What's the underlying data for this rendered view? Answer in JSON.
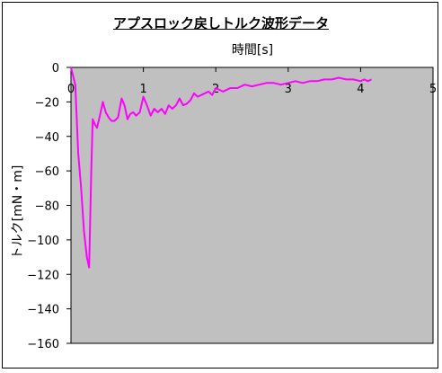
{
  "chart_data": {
    "type": "line",
    "title": "アプスロック戻しトルク波形データ",
    "xlabel": "時間[s]",
    "ylabel": "トルク[mN・m]",
    "xlim": [
      0,
      5
    ],
    "ylim": [
      -160,
      0
    ],
    "x_ticks": [
      "0",
      "1",
      "2",
      "3",
      "4",
      "5"
    ],
    "y_ticks": [
      "0",
      "−20",
      "−40",
      "−60",
      "−80",
      "−100",
      "−120",
      "−140",
      "−160"
    ],
    "plot_background": "#c0c0c0",
    "grid": false,
    "series": [
      {
        "color": "#ff00ff",
        "x": [
          0.0,
          0.06,
          0.1,
          0.14,
          0.18,
          0.22,
          0.25,
          0.28,
          0.3,
          0.33,
          0.36,
          0.4,
          0.44,
          0.48,
          0.52,
          0.56,
          0.6,
          0.65,
          0.7,
          0.74,
          0.78,
          0.82,
          0.86,
          0.9,
          0.95,
          1.0,
          1.05,
          1.1,
          1.15,
          1.2,
          1.25,
          1.3,
          1.35,
          1.4,
          1.45,
          1.5,
          1.55,
          1.6,
          1.65,
          1.7,
          1.75,
          1.8,
          1.85,
          1.9,
          1.95,
          2.0,
          2.1,
          2.2,
          2.3,
          2.4,
          2.5,
          2.6,
          2.7,
          2.8,
          2.9,
          3.0,
          3.1,
          3.2,
          3.3,
          3.4,
          3.5,
          3.6,
          3.7,
          3.8,
          3.9,
          4.0,
          4.05,
          4.1,
          4.15
        ],
        "y": [
          0,
          -10,
          -50,
          -70,
          -95,
          -110,
          -116,
          -60,
          -30,
          -33,
          -35,
          -28,
          -20,
          -26,
          -29,
          -31,
          -31,
          -29,
          -18,
          -22,
          -30,
          -27,
          -26,
          -28,
          -26,
          -17,
          -22,
          -28,
          -24,
          -26,
          -24,
          -27,
          -22,
          -24,
          -22,
          -18,
          -22,
          -21,
          -19,
          -15,
          -17,
          -16,
          -15,
          -14,
          -16,
          -12,
          -14,
          -12,
          -12,
          -10,
          -11,
          -10,
          -9,
          -9,
          -10,
          -9,
          -8,
          -9,
          -8,
          -8,
          -7,
          -7,
          -6,
          -7,
          -7,
          -8,
          -7,
          -8,
          -7
        ]
      }
    ]
  }
}
